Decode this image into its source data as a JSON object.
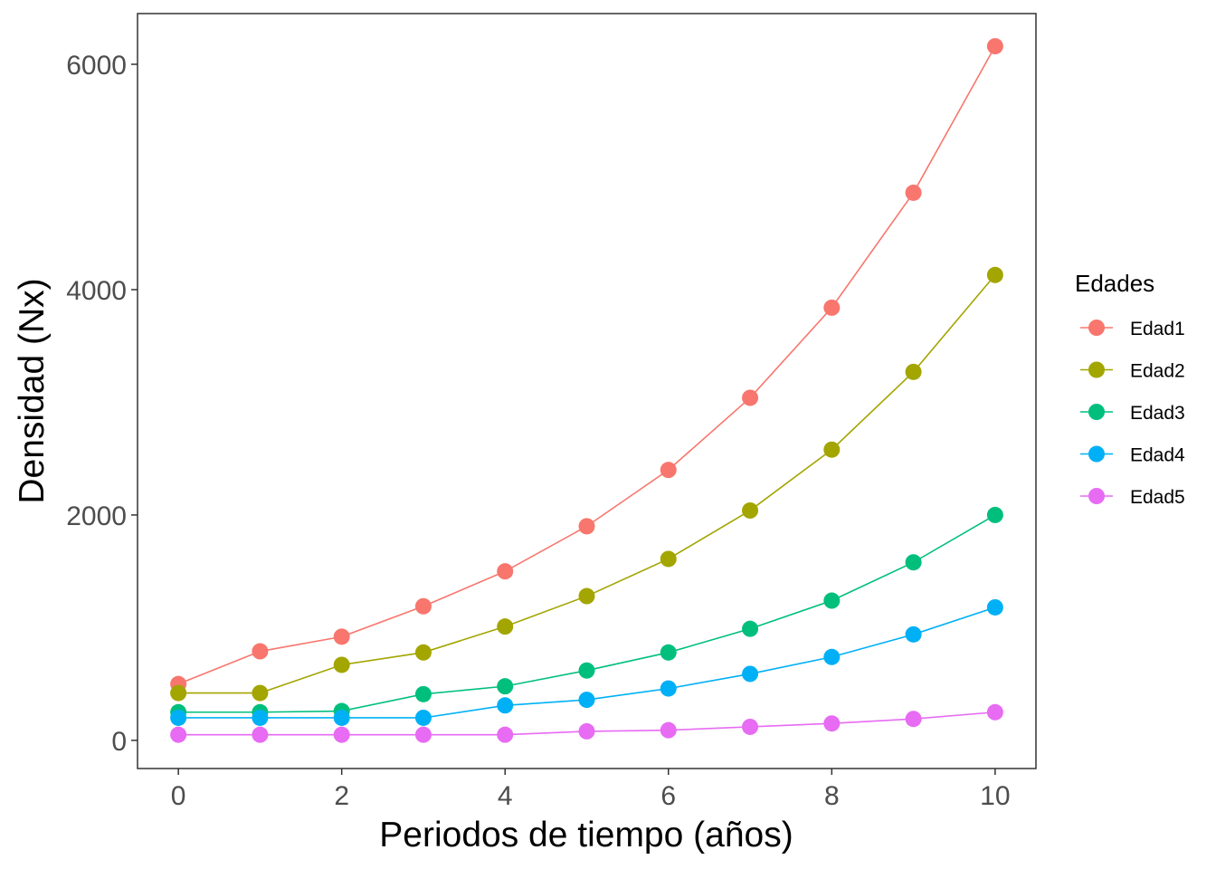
{
  "chart_data": {
    "type": "line",
    "xlabel": "Periodos de tiempo (años)",
    "ylabel": "Densidad (Nx)",
    "xlim": [
      -0.5,
      10.5
    ],
    "ylim": [
      -250,
      6450
    ],
    "x_ticks": [
      0,
      2,
      4,
      6,
      8,
      10
    ],
    "y_ticks": [
      0,
      2000,
      4000,
      6000
    ],
    "x_tick_labels": [
      "0",
      "2",
      "4",
      "6",
      "8",
      "10"
    ],
    "y_tick_labels": [
      "0",
      "2000",
      "4000",
      "6000"
    ],
    "grid": false,
    "legend": {
      "title": "Edades",
      "position": "right"
    },
    "x": [
      0,
      1,
      2,
      3,
      4,
      5,
      6,
      7,
      8,
      9,
      10
    ],
    "series": [
      {
        "name": "Edad1",
        "color": "#F8766D",
        "values": [
          500,
          790,
          920,
          1190,
          1500,
          1900,
          2400,
          3040,
          3840,
          4860,
          6160
        ]
      },
      {
        "name": "Edad2",
        "color": "#A3A500",
        "values": [
          420,
          420,
          670,
          780,
          1010,
          1280,
          1610,
          2040,
          2580,
          3270,
          4130
        ]
      },
      {
        "name": "Edad3",
        "color": "#00BF7D",
        "values": [
          250,
          250,
          260,
          410,
          480,
          620,
          780,
          990,
          1240,
          1580,
          2000
        ]
      },
      {
        "name": "Edad4",
        "color": "#00B0F6",
        "values": [
          200,
          200,
          200,
          200,
          310,
          360,
          460,
          590,
          740,
          940,
          1180
        ]
      },
      {
        "name": "Edad5",
        "color": "#E76BF3",
        "values": [
          50,
          50,
          50,
          50,
          50,
          80,
          90,
          120,
          150,
          190,
          250
        ]
      }
    ]
  }
}
